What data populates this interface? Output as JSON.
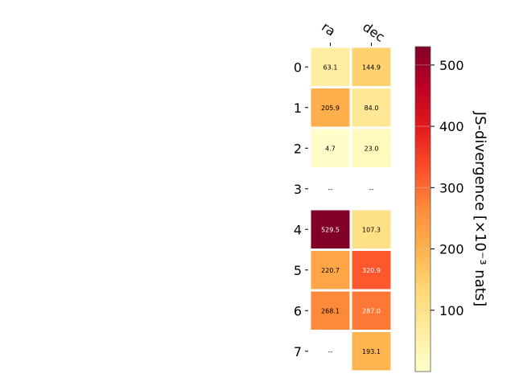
{
  "chart_data": {
    "type": "heatmap",
    "columns": [
      "ra",
      "dec"
    ],
    "rows": [
      "0",
      "1",
      "2",
      "3",
      "4",
      "5",
      "6",
      "7"
    ],
    "values": [
      [
        63.1,
        144.9
      ],
      [
        205.9,
        84.0
      ],
      [
        4.7,
        23.0
      ],
      [
        null,
        null
      ],
      [
        529.5,
        107.3
      ],
      [
        220.7,
        320.9
      ],
      [
        268.1,
        287.0
      ],
      [
        null,
        193.1
      ]
    ],
    "missing_label": "--",
    "colormap": "YlOrRd",
    "clim": [
      0,
      530
    ],
    "colorbar_ticks": [
      100,
      200,
      300,
      400,
      500
    ],
    "colorbar_label": "JS-divergence [×10⁻³ nats]"
  }
}
